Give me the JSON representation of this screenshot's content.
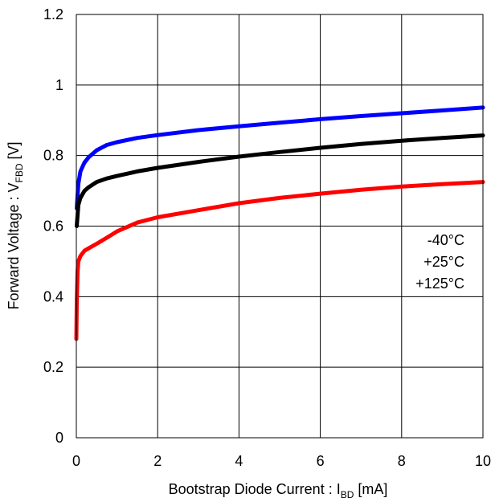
{
  "chart_data": {
    "type": "line",
    "xlabel": {
      "main": "Bootstrap Diode Current : I",
      "sub": "BD",
      "unit": " [mA]"
    },
    "ylabel": {
      "main": "Forward Voltage : V",
      "sub": "FBD",
      "unit": " [V]"
    },
    "xlim": [
      0,
      10
    ],
    "ylim": [
      0,
      1.2
    ],
    "xticks": [
      0,
      2,
      4,
      6,
      8,
      10
    ],
    "xtick_labels": [
      "0",
      "2",
      "4",
      "6",
      "8",
      "10"
    ],
    "yticks": [
      0,
      0.2,
      0.4,
      0.6,
      0.8,
      1.0,
      1.2
    ],
    "ytick_labels": [
      "0",
      "0.2",
      "0.4",
      "0.6",
      "0.8",
      "1",
      "1.2"
    ],
    "grid": true,
    "legend_placement": "right",
    "legend": [
      "-40°C",
      "+25°C",
      "+125°C"
    ],
    "series": [
      {
        "name": "-40°C",
        "color": "#0000ff",
        "x": [
          0.01,
          0.05,
          0.1,
          0.2,
          0.3,
          0.5,
          0.75,
          1.0,
          1.5,
          2.0,
          3.0,
          4.0,
          5.0,
          6.0,
          7.0,
          8.0,
          9.0,
          10.0
        ],
        "y": [
          0.65,
          0.72,
          0.755,
          0.78,
          0.795,
          0.815,
          0.83,
          0.838,
          0.85,
          0.858,
          0.872,
          0.883,
          0.893,
          0.903,
          0.912,
          0.92,
          0.928,
          0.936
        ]
      },
      {
        "name": "+25°C",
        "color": "#000000",
        "x": [
          0.01,
          0.05,
          0.1,
          0.2,
          0.3,
          0.5,
          0.75,
          1.0,
          1.5,
          2.0,
          3.0,
          4.0,
          5.0,
          6.0,
          7.0,
          8.0,
          9.0,
          10.0
        ],
        "y": [
          0.6,
          0.66,
          0.68,
          0.7,
          0.71,
          0.725,
          0.735,
          0.742,
          0.755,
          0.765,
          0.782,
          0.797,
          0.81,
          0.822,
          0.833,
          0.842,
          0.85,
          0.857
        ]
      },
      {
        "name": "+125°C",
        "color": "#ff0000",
        "x": [
          0.0,
          0.01,
          0.03,
          0.05,
          0.1,
          0.2,
          0.3,
          0.5,
          0.75,
          1.0,
          1.5,
          2.0,
          3.0,
          4.0,
          5.0,
          6.0,
          7.0,
          8.0,
          9.0,
          10.0
        ],
        "y": [
          0.28,
          0.38,
          0.47,
          0.5,
          0.515,
          0.53,
          0.537,
          0.55,
          0.567,
          0.585,
          0.61,
          0.625,
          0.645,
          0.665,
          0.68,
          0.692,
          0.703,
          0.712,
          0.719,
          0.725
        ]
      }
    ]
  }
}
